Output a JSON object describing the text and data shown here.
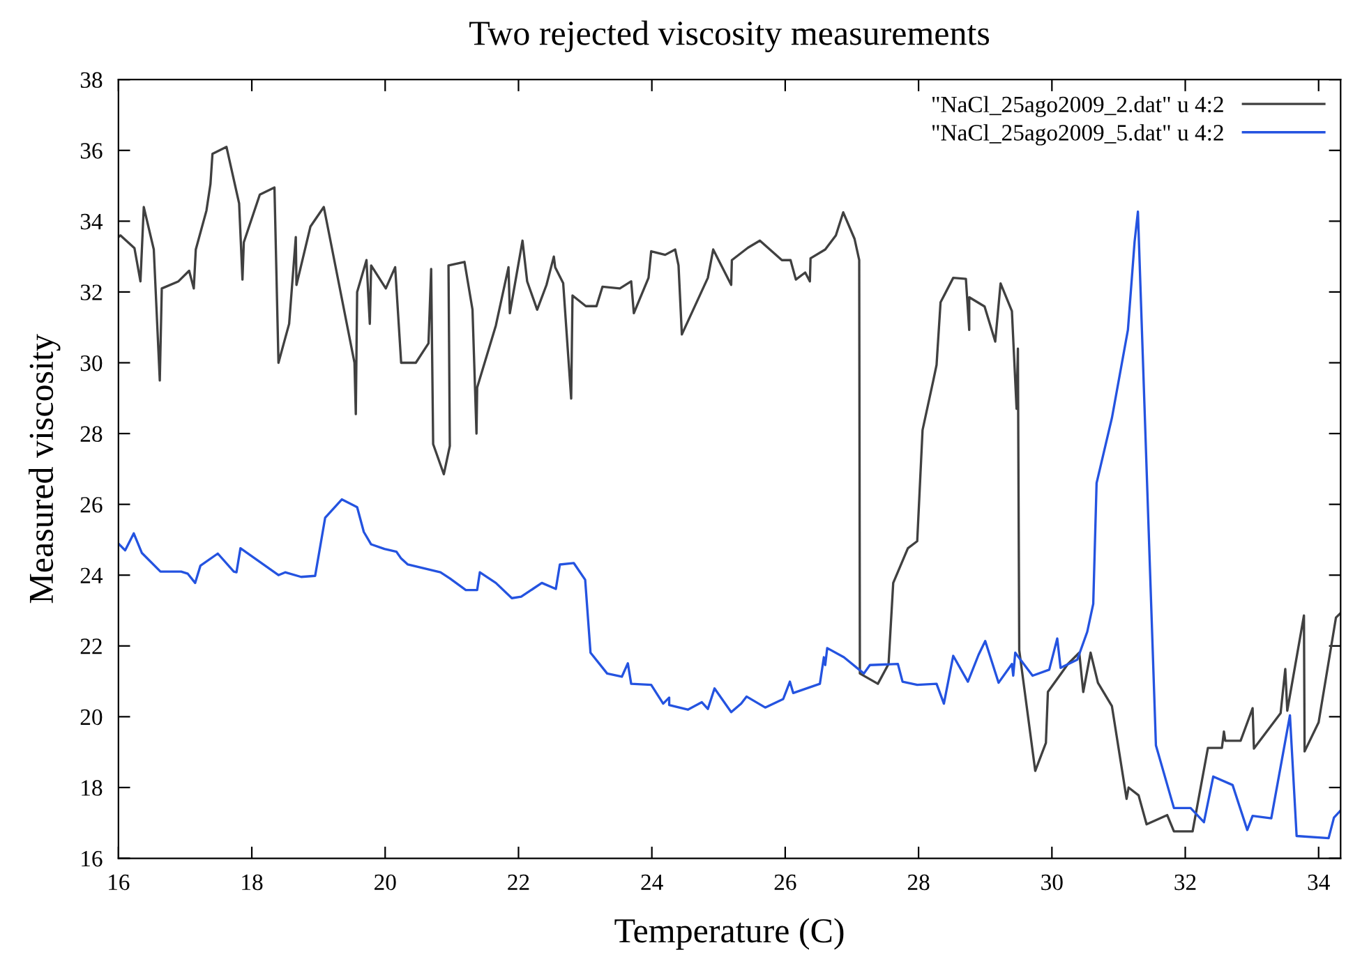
{
  "chart_data": {
    "type": "line",
    "title": "Two rejected viscosity measurements",
    "xlabel": "Temperature (C)",
    "ylabel": "Measured viscosity",
    "xlim": [
      16,
      34.33
    ],
    "xticks": [
      16,
      18,
      20,
      22,
      24,
      26,
      28,
      30,
      32,
      34
    ],
    "ylim": [
      16,
      38
    ],
    "yticks": [
      16,
      18,
      20,
      22,
      24,
      26,
      28,
      30,
      32,
      34,
      36,
      38
    ],
    "grid": false,
    "legend": "top right",
    "marker": "none",
    "line_style": "solid",
    "series": [
      {
        "name": "\"NaCl_25ago2009_2.dat\" u 4:2",
        "color": "#404040",
        "x": [
          16.0,
          16.03,
          16.24,
          16.33,
          16.38,
          16.53,
          16.62,
          16.65,
          16.9,
          17.06,
          17.13,
          17.16,
          17.32,
          17.38,
          17.41,
          17.62,
          17.81,
          17.86,
          17.88,
          18.12,
          18.34,
          18.4,
          18.56,
          18.66,
          18.67,
          18.88,
          19.08,
          19.54,
          19.56,
          19.58,
          19.72,
          19.77,
          19.79,
          20.01,
          20.15,
          20.24,
          20.46,
          20.65,
          20.69,
          20.72,
          20.88,
          20.97,
          20.95,
          21.19,
          21.31,
          21.37,
          21.38,
          21.66,
          21.85,
          21.87,
          22.06,
          22.13,
          22.28,
          22.42,
          22.53,
          22.55,
          22.67,
          22.79,
          22.81,
          23.01,
          23.17,
          23.26,
          23.52,
          23.69,
          23.73,
          23.95,
          23.99,
          24.2,
          24.35,
          24.4,
          24.45,
          24.84,
          24.92,
          25.19,
          25.2,
          25.44,
          25.62,
          25.95,
          26.08,
          26.16,
          26.3,
          26.37,
          26.38,
          26.6,
          26.76,
          26.87,
          27.04,
          27.11,
          27.12,
          27.39,
          27.55,
          27.62,
          27.84,
          27.98,
          28.06,
          28.22,
          28.27,
          28.33,
          28.52,
          28.71,
          28.76,
          28.76,
          28.99,
          29.15,
          29.23,
          29.4,
          29.47,
          29.49,
          29.51,
          29.75,
          29.91,
          29.94,
          30.24,
          30.41,
          30.47,
          30.58,
          30.69,
          30.9,
          31.12,
          31.15,
          31.3,
          31.42,
          31.73,
          31.83,
          32.11,
          32.34,
          32.55,
          32.58,
          32.6,
          32.83,
          33.01,
          33.03,
          33.43,
          33.5,
          33.53,
          33.78,
          33.79,
          34.0,
          34.26,
          34.33
        ],
        "values": [
          33.55,
          33.6,
          33.24,
          32.3,
          34.4,
          33.2,
          29.5,
          32.1,
          32.3,
          32.6,
          32.1,
          33.2,
          34.3,
          35.05,
          35.9,
          36.1,
          34.5,
          32.35,
          33.4,
          34.75,
          34.95,
          30.0,
          31.1,
          33.55,
          32.2,
          33.85,
          34.4,
          30.0,
          28.55,
          32.0,
          32.9,
          31.1,
          32.75,
          32.1,
          32.7,
          30.0,
          30.0,
          30.55,
          32.65,
          27.7,
          26.85,
          27.65,
          32.75,
          32.85,
          31.5,
          28.0,
          29.3,
          31.05,
          32.7,
          31.4,
          33.45,
          32.3,
          31.5,
          32.2,
          33.0,
          32.7,
          32.25,
          28.99,
          31.9,
          31.6,
          31.6,
          32.15,
          32.1,
          32.3,
          31.4,
          32.4,
          33.15,
          33.05,
          33.2,
          32.75,
          30.8,
          32.4,
          33.2,
          32.2,
          32.9,
          33.25,
          33.45,
          32.9,
          32.9,
          32.35,
          32.55,
          32.3,
          32.95,
          33.2,
          33.6,
          34.25,
          33.5,
          32.9,
          21.22,
          20.93,
          21.49,
          23.78,
          24.76,
          24.96,
          28.1,
          29.49,
          29.94,
          31.71,
          32.4,
          32.37,
          30.93,
          31.85,
          31.59,
          30.6,
          32.24,
          31.46,
          28.7,
          30.4,
          21.88,
          18.47,
          19.26,
          20.7,
          21.49,
          21.81,
          20.7,
          21.81,
          20.96,
          20.3,
          17.68,
          18.0,
          17.78,
          16.96,
          17.22,
          16.76,
          16.76,
          19.12,
          19.12,
          19.58,
          19.32,
          19.32,
          20.24,
          19.1,
          20.1,
          21.35,
          20.17,
          22.86,
          19.02,
          19.84,
          22.8,
          22.93
        ]
      },
      {
        "name": "\"NaCl_25ago2009_5.dat\" u 4:2",
        "color": "#2453e0",
        "x": [
          16.0,
          16.1,
          16.23,
          16.35,
          16.63,
          16.94,
          17.04,
          17.15,
          17.23,
          17.49,
          17.73,
          17.77,
          17.83,
          18.4,
          18.5,
          18.74,
          18.95,
          19.1,
          19.35,
          19.58,
          19.68,
          19.79,
          19.99,
          20.17,
          20.24,
          20.34,
          20.83,
          20.97,
          21.21,
          21.38,
          21.42,
          21.66,
          21.9,
          22.04,
          22.35,
          22.56,
          22.62,
          22.83,
          23.0,
          23.08,
          23.33,
          23.55,
          23.64,
          23.69,
          23.99,
          24.17,
          24.26,
          24.26,
          24.54,
          24.75,
          24.84,
          24.94,
          25.19,
          25.34,
          25.42,
          25.7,
          25.97,
          26.07,
          26.12,
          26.52,
          26.58,
          26.6,
          26.63,
          26.88,
          27.18,
          27.27,
          27.69,
          27.76,
          27.98,
          28.27,
          28.38,
          28.52,
          28.74,
          28.9,
          29.0,
          29.2,
          29.4,
          29.42,
          29.45,
          29.71,
          29.96,
          30.08,
          30.13,
          30.38,
          30.53,
          30.62,
          30.67,
          30.9,
          31.14,
          31.24,
          31.29,
          31.56,
          31.83,
          32.08,
          32.28,
          32.42,
          32.71,
          32.93,
          33.01,
          33.29,
          33.57,
          33.67,
          34.15,
          34.23,
          34.33
        ],
        "values": [
          24.89,
          24.7,
          25.18,
          24.63,
          24.1,
          24.1,
          24.04,
          23.78,
          24.27,
          24.61,
          24.1,
          24.08,
          24.76,
          24.0,
          24.08,
          23.95,
          23.98,
          25.62,
          26.14,
          25.92,
          25.22,
          24.87,
          24.74,
          24.66,
          24.47,
          24.3,
          24.08,
          23.91,
          23.58,
          23.58,
          24.08,
          23.78,
          23.35,
          23.39,
          23.78,
          23.61,
          24.3,
          24.34,
          23.87,
          21.81,
          21.22,
          21.13,
          21.51,
          20.93,
          20.9,
          20.37,
          20.54,
          20.33,
          20.2,
          20.41,
          20.22,
          20.8,
          20.13,
          20.37,
          20.57,
          20.26,
          20.5,
          20.99,
          20.67,
          20.93,
          21.68,
          21.46,
          21.94,
          21.68,
          21.22,
          21.46,
          21.49,
          20.99,
          20.9,
          20.93,
          20.37,
          21.72,
          20.99,
          21.75,
          22.14,
          20.96,
          21.49,
          21.16,
          21.81,
          21.16,
          21.33,
          22.21,
          21.38,
          21.61,
          22.4,
          23.19,
          26.6,
          28.44,
          30.93,
          33.42,
          34.27,
          19.19,
          17.42,
          17.42,
          17.02,
          18.31,
          18.07,
          16.8,
          17.2,
          17.13,
          20.04,
          16.63,
          16.57,
          17.15,
          17.35
        ]
      }
    ]
  }
}
